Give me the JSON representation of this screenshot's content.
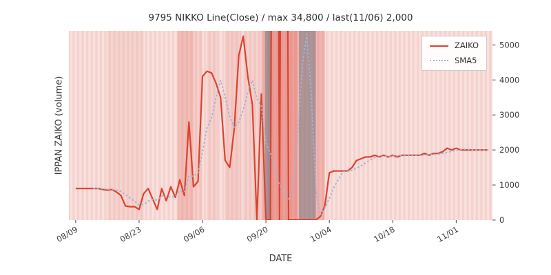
{
  "chart_data": {
    "type": "line",
    "title": "9795 NIKKO Line(Close) / max 34,800 / last(11/06) 2,000",
    "xlabel": "DATE",
    "ylabel": "IPPAN ZAIKO (volume)",
    "x_unit": "days since 08/09",
    "x_tick_days": [
      0,
      14,
      28,
      42,
      56,
      70,
      84
    ],
    "x_tick_labels": [
      "08/09",
      "08/23",
      "09/06",
      "09/20",
      "10/04",
      "10/18",
      "11/01"
    ],
    "y_ticks": [
      0,
      1000,
      2000,
      3000,
      4000,
      5000
    ],
    "ylim": [
      0,
      5400
    ],
    "y_axis_side": "right",
    "grid": false,
    "legend_position": "upper right",
    "legend": {
      "entries": [
        {
          "label": "ZAIKO",
          "style": "solid",
          "color": "#d9442f"
        },
        {
          "label": "SMA5",
          "style": "dotted",
          "color": "#9db4d9"
        }
      ]
    },
    "annotations": {
      "max_value": 34800,
      "last_date": "11/06",
      "last_value": 2000,
      "clipped_spike_days": [
        44,
        46
      ]
    },
    "colors": {
      "figure_bg": "#ffffff",
      "plot_bg": "#f8e1de",
      "day_stripe": "rgba(224,105,95,0.13)",
      "tick": "#555555",
      "text": "#3a3a3a"
    },
    "series": [
      {
        "name": "ZAIKO",
        "color": "#d9442f",
        "line_style": "solid",
        "x_start_day": 0,
        "values": [
          900,
          900,
          900,
          900,
          900,
          900,
          870,
          850,
          870,
          800,
          700,
          400,
          380,
          380,
          300,
          750,
          900,
          600,
          300,
          900,
          550,
          950,
          650,
          1150,
          700,
          2800,
          950,
          1100,
          4100,
          4250,
          4200,
          3900,
          3500,
          1700,
          1500,
          2600,
          4700,
          5250,
          4100,
          3300,
          0,
          3600,
          0,
          0,
          34800,
          0,
          34800,
          0,
          0,
          0,
          0,
          0,
          0,
          0,
          100,
          400,
          1350,
          1400,
          1400,
          1400,
          1400,
          1500,
          1700,
          1750,
          1800,
          1800,
          1850,
          1800,
          1850,
          1800,
          1850,
          1800,
          1850,
          1850,
          1850,
          1850,
          1850,
          1900,
          1850,
          1900,
          1900,
          1950,
          2050,
          2000,
          2050,
          2000,
          2000,
          2000,
          2000,
          2000,
          2000,
          2000
        ]
      },
      {
        "name": "SMA5",
        "color": "#9db4d9",
        "line_style": "dotted",
        "x_start_day": 4,
        "values": [
          900,
          900,
          894,
          884,
          878,
          858,
          818,
          724,
          630,
          532,
          432,
          442,
          542,
          586,
          570,
          690,
          650,
          660,
          670,
          840,
          800,
          1250,
          1250,
          1340,
          1930,
          2640,
          2920,
          3510,
          3990,
          3510,
          2960,
          2640,
          2800,
          3150,
          3630,
          3990,
          3470,
          3250,
          2200,
          1900,
          1400,
          1000,
          800,
          600,
          800,
          2400,
          4400,
          5300,
          3600,
          900,
          150,
          340,
          620,
          930,
          1160,
          1380,
          1390,
          1420,
          1480,
          1550,
          1630,
          1710,
          1780,
          1800,
          1820,
          1820,
          1830,
          1830,
          1830,
          1840,
          1840,
          1850,
          1850,
          1860,
          1860,
          1870,
          1880,
          1900,
          1930,
          1960,
          1990,
          2010,
          2020,
          2010,
          2000,
          2000,
          2000,
          2000
        ]
      }
    ],
    "background_bands": [
      {
        "from": 7.0,
        "to": 15.0,
        "color": "rgba(226,108,98,0.10)"
      },
      {
        "from": 22.5,
        "to": 26.0,
        "color": "rgba(226,108,98,0.30)"
      },
      {
        "from": 26.0,
        "to": 28.0,
        "color": "rgba(226,108,98,0.14)"
      },
      {
        "from": 29.0,
        "to": 31.5,
        "color": "rgba(226,108,98,0.12)"
      },
      {
        "from": 33.0,
        "to": 36.5,
        "color": "rgba(226,108,98,0.16)"
      },
      {
        "from": 37.0,
        "to": 41.0,
        "color": "rgba(226,108,98,0.12)"
      },
      {
        "from": 41.0,
        "to": 55.0,
        "color": "rgba(221,82,72,0.30)"
      },
      {
        "from": 42.5,
        "to": 49.0,
        "color": "rgba(219,70,60,0.20)"
      },
      {
        "from": 41.8,
        "to": 43.2,
        "color": "rgba(118,122,132,0.60)"
      },
      {
        "from": 49.3,
        "to": 53.0,
        "color": "rgba(118,122,132,0.55)"
      }
    ]
  }
}
